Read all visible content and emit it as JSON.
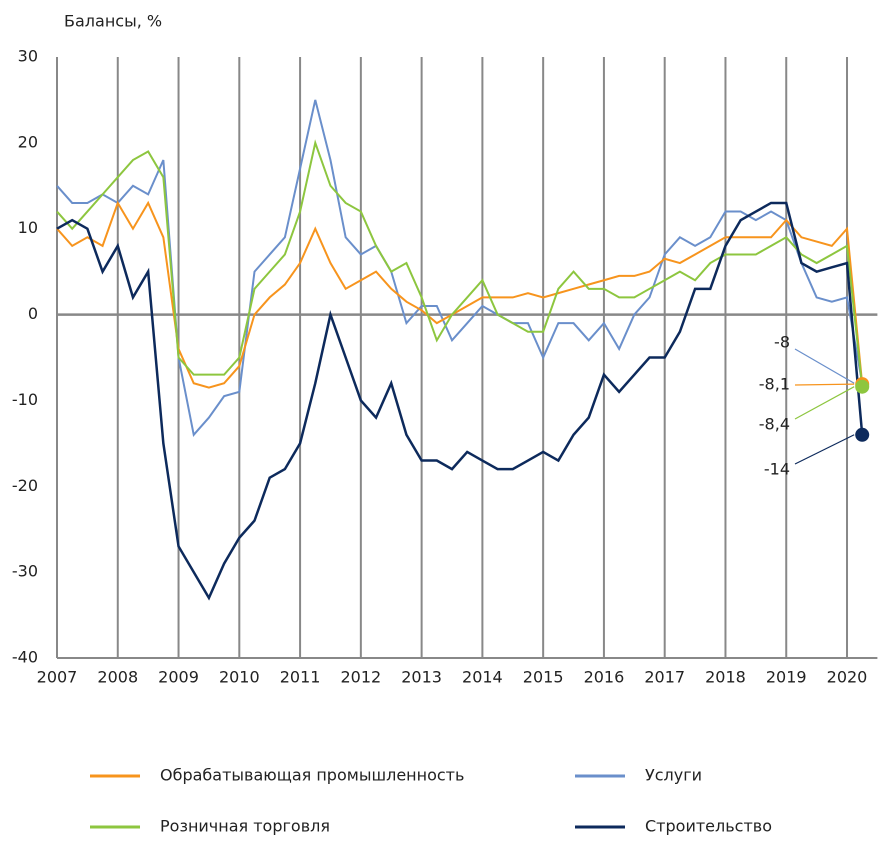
{
  "chart_data": {
    "type": "line",
    "ylabel": "Балансы, %",
    "x": [
      2007,
      2007.25,
      2007.5,
      2007.75,
      2008,
      2008.25,
      2008.5,
      2008.75,
      2009,
      2009.25,
      2009.5,
      2009.75,
      2010,
      2010.25,
      2010.5,
      2010.75,
      2011,
      2011.25,
      2011.5,
      2011.75,
      2012,
      2012.25,
      2012.5,
      2012.75,
      2013,
      2013.25,
      2013.5,
      2013.75,
      2014,
      2014.25,
      2014.5,
      2014.75,
      2015,
      2015.25,
      2015.5,
      2015.75,
      2016,
      2016.25,
      2016.5,
      2016.75,
      2017,
      2017.25,
      2017.5,
      2017.75,
      2018,
      2018.25,
      2018.5,
      2018.75,
      2019,
      2019.25,
      2019.5,
      2019.75,
      2020,
      2020.25
    ],
    "xlim": [
      2007,
      2020.5
    ],
    "xticks": [
      2007,
      2008,
      2009,
      2010,
      2011,
      2012,
      2013,
      2014,
      2015,
      2016,
      2017,
      2018,
      2019,
      2020
    ],
    "ylim": [
      -40,
      30
    ],
    "yticks": [
      -40,
      -30,
      -20,
      -10,
      0,
      10,
      20,
      30
    ],
    "grid": true,
    "series": [
      {
        "name": "Обрабатывающая промышленность",
        "color": "#f7941d",
        "values": [
          10,
          8,
          9,
          8,
          13,
          10,
          13,
          9,
          -4,
          -8,
          -8.5,
          -8,
          -6,
          0,
          2,
          3.5,
          6,
          10,
          6,
          3,
          4,
          5,
          3,
          1.5,
          0.5,
          -1,
          0,
          1,
          2,
          2,
          2,
          2.5,
          2,
          2.5,
          3,
          3.5,
          4,
          4.5,
          4.5,
          5,
          6.5,
          6,
          7,
          8,
          9,
          9,
          9,
          9,
          11,
          9,
          8.5,
          8,
          10,
          -8.1
        ],
        "value_labels": [
          null,
          null,
          null,
          null,
          null,
          null,
          null,
          null,
          null,
          null,
          null,
          null,
          null,
          null,
          null,
          null,
          null,
          null,
          null,
          null,
          null,
          null,
          null,
          null,
          null,
          null,
          null,
          null,
          null,
          null,
          null,
          null,
          null,
          null,
          null,
          null,
          null,
          null,
          null,
          null,
          null,
          null,
          null,
          null,
          null,
          null,
          null,
          null,
          null,
          null,
          null,
          null,
          null,
          "-8,1"
        ]
      },
      {
        "name": "Услуги",
        "color": "#6a8fcb",
        "values": [
          15,
          13,
          13,
          14,
          13,
          15,
          14,
          18,
          -5,
          -14,
          -12,
          -9.5,
          -9,
          5,
          7,
          9,
          17,
          25,
          18,
          9,
          7,
          8,
          5,
          -1,
          1,
          1,
          -3,
          -1,
          1,
          0,
          -1,
          -1,
          -5,
          -1,
          -1,
          -3,
          -1,
          -4,
          0,
          2,
          7,
          9,
          8,
          9,
          12,
          12,
          11,
          12,
          11,
          6,
          2,
          1.5,
          2,
          -8
        ],
        "value_labels": [
          null,
          null,
          null,
          null,
          null,
          null,
          null,
          null,
          null,
          null,
          null,
          null,
          null,
          null,
          null,
          null,
          null,
          null,
          null,
          null,
          null,
          null,
          null,
          null,
          null,
          null,
          null,
          null,
          null,
          null,
          null,
          null,
          null,
          null,
          null,
          null,
          null,
          null,
          null,
          null,
          null,
          null,
          null,
          null,
          null,
          null,
          null,
          null,
          null,
          null,
          null,
          null,
          null,
          "-8"
        ]
      },
      {
        "name": "Розничная торговля",
        "color": "#8dc63f",
        "values": [
          12,
          10,
          12,
          14,
          16,
          18,
          19,
          16,
          -5,
          -7,
          -7,
          -7,
          -5,
          3,
          5,
          7,
          12,
          20,
          15,
          13,
          12,
          8,
          5,
          6,
          2,
          -3,
          0,
          2,
          4,
          0,
          -1,
          -2,
          -2,
          3,
          5,
          3,
          3,
          2,
          2,
          3,
          4,
          5,
          4,
          6,
          7,
          7,
          7,
          8,
          9,
          7,
          6,
          7,
          8,
          -8.4
        ],
        "value_labels": [
          null,
          null,
          null,
          null,
          null,
          null,
          null,
          null,
          null,
          null,
          null,
          null,
          null,
          null,
          null,
          null,
          null,
          null,
          null,
          null,
          null,
          null,
          null,
          null,
          null,
          null,
          null,
          null,
          null,
          null,
          null,
          null,
          null,
          null,
          null,
          null,
          null,
          null,
          null,
          null,
          null,
          null,
          null,
          null,
          null,
          null,
          null,
          null,
          null,
          null,
          null,
          null,
          null,
          "-8,4"
        ]
      },
      {
        "name": "Строительство",
        "color": "#0d2a5c",
        "values": [
          10,
          11,
          10,
          5,
          8,
          2,
          5,
          -15,
          -27,
          -30,
          -33,
          -29,
          -26,
          -24,
          -19,
          -18,
          -15,
          -8,
          0,
          -5,
          -10,
          -12,
          -8,
          -14,
          -17,
          -17,
          -18,
          -16,
          -17,
          -18,
          -18,
          -17,
          -16,
          -17,
          -14,
          -12,
          -7,
          -9,
          -7,
          -5,
          -5,
          -2,
          3,
          3,
          8,
          11,
          12,
          13,
          13,
          6,
          5,
          5.5,
          6,
          -14
        ],
        "value_labels": [
          null,
          null,
          null,
          null,
          null,
          null,
          null,
          null,
          null,
          null,
          null,
          null,
          null,
          null,
          null,
          null,
          null,
          null,
          null,
          null,
          null,
          null,
          null,
          null,
          null,
          null,
          null,
          null,
          null,
          null,
          null,
          null,
          null,
          null,
          null,
          null,
          null,
          null,
          null,
          null,
          null,
          null,
          null,
          null,
          null,
          null,
          null,
          null,
          null,
          null,
          null,
          null,
          null,
          "-14"
        ]
      }
    ]
  }
}
